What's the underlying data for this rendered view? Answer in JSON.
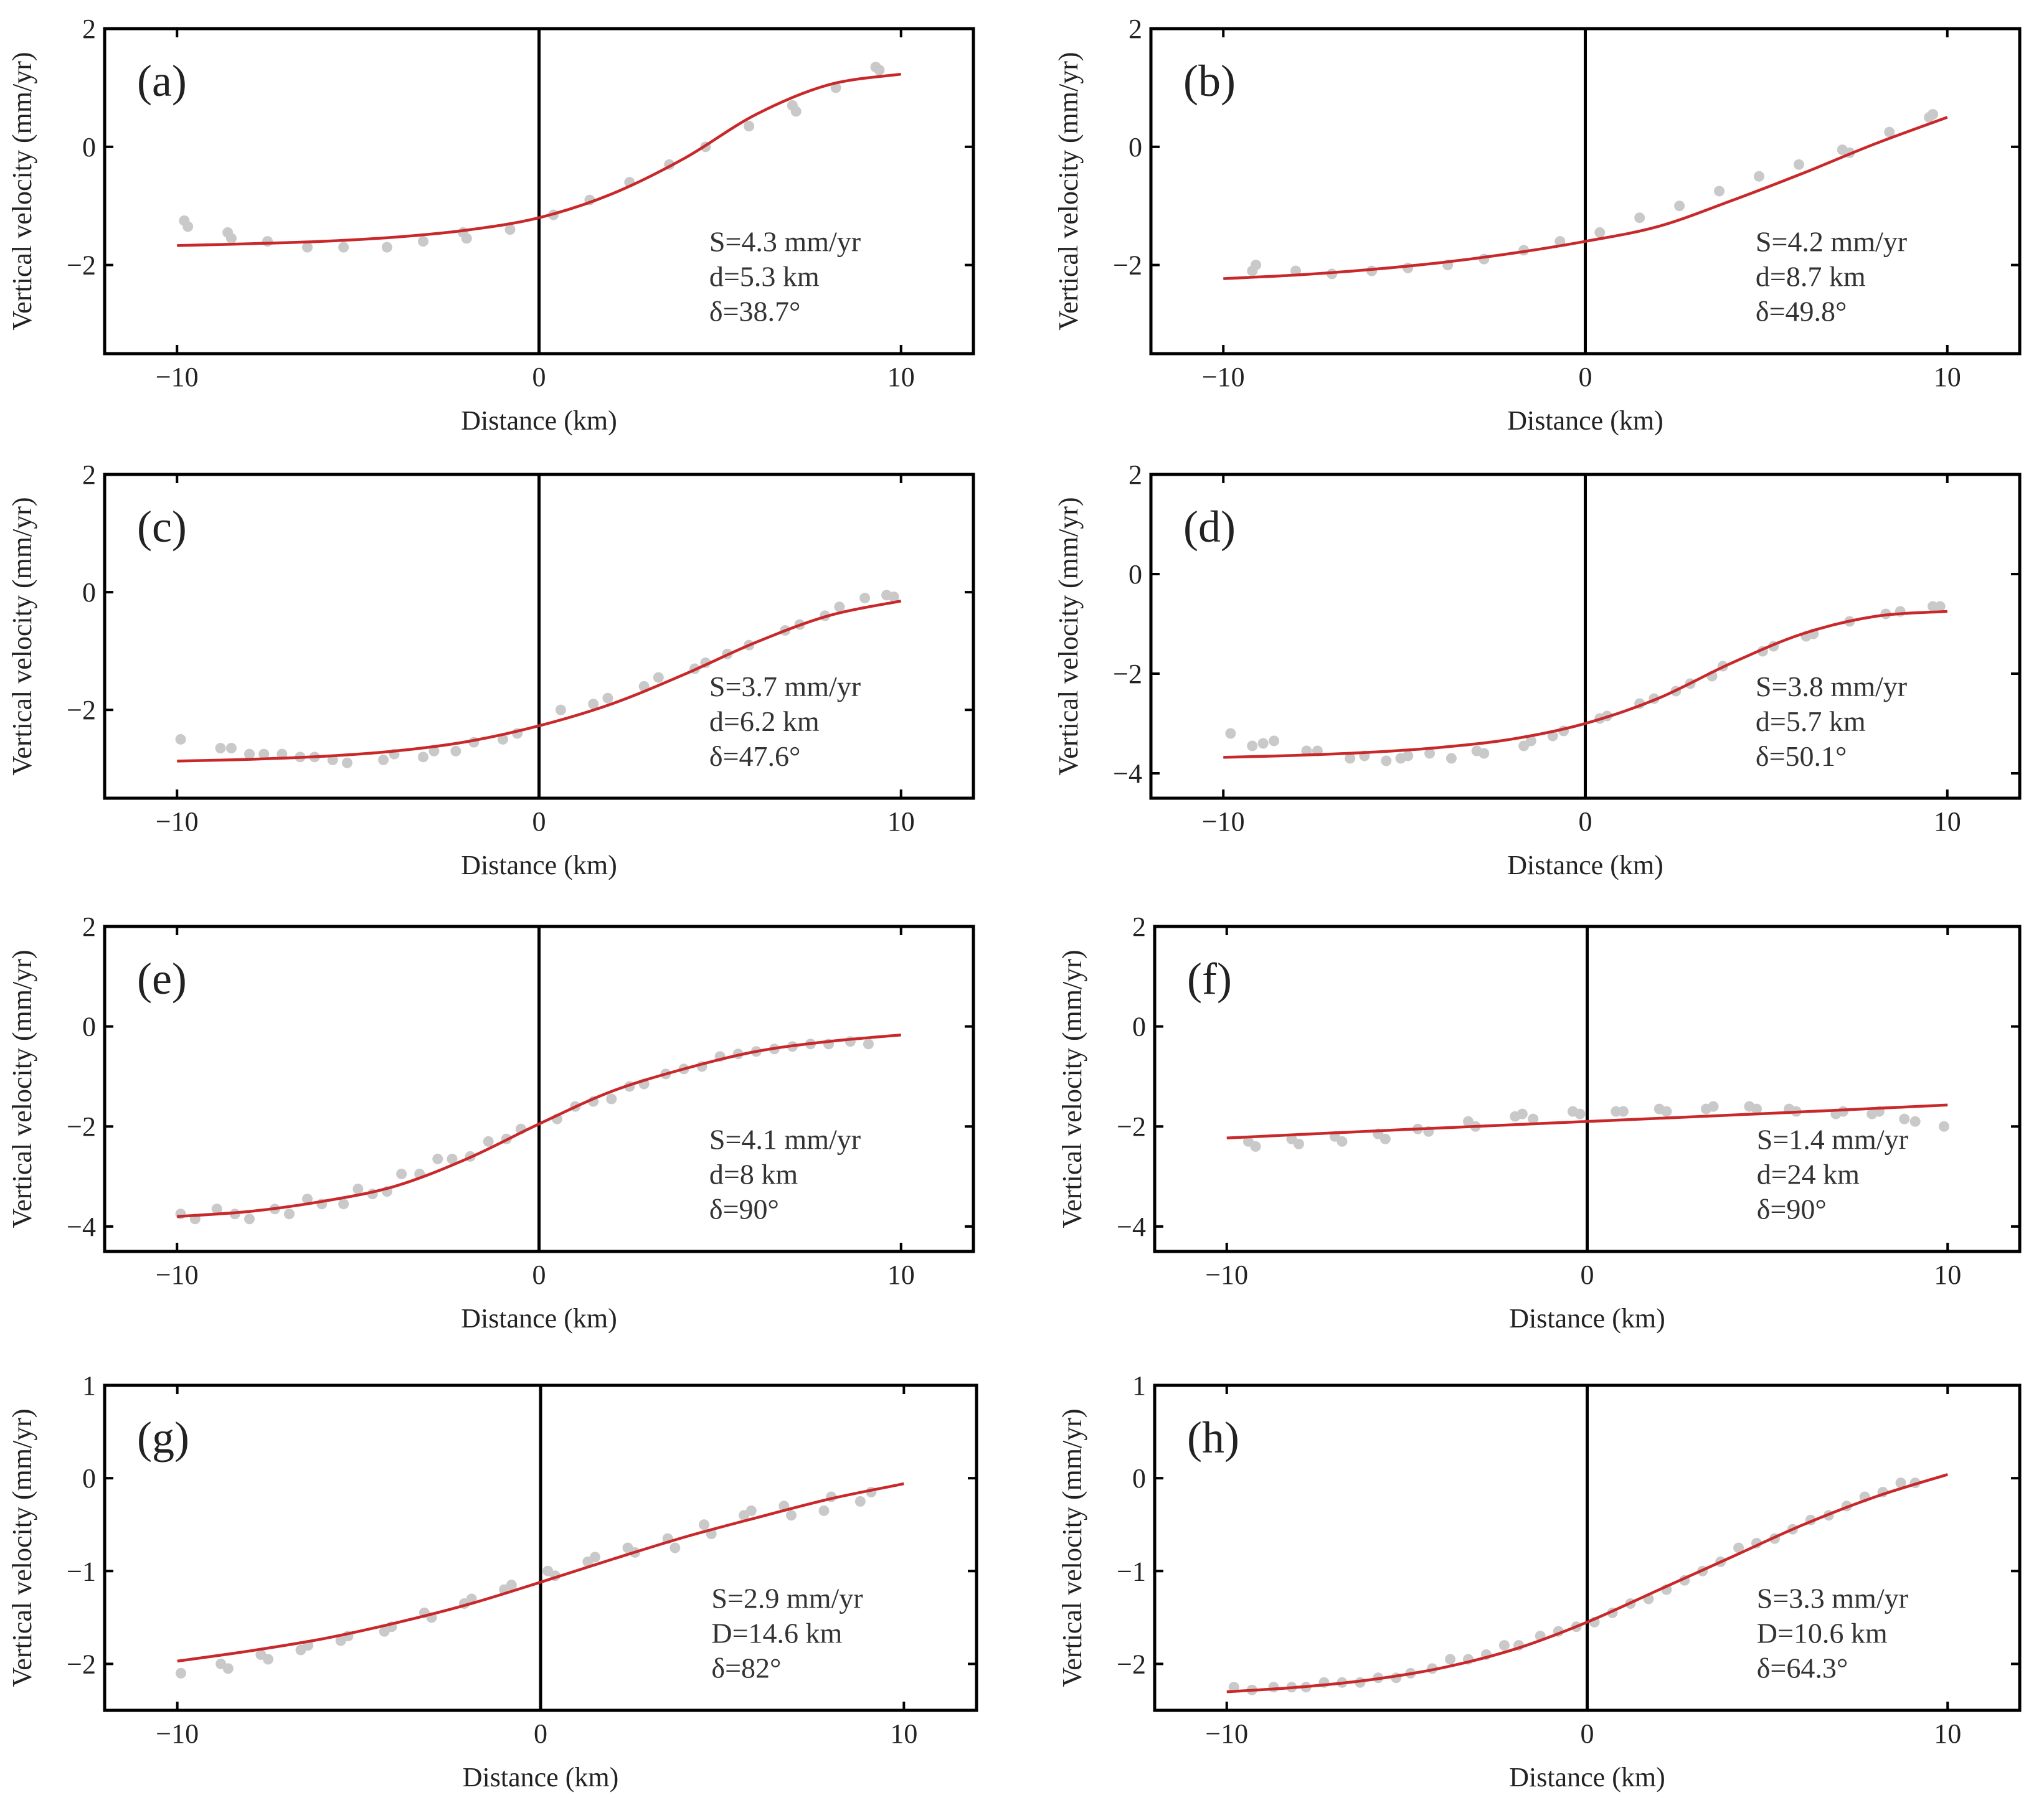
{
  "chart_data": [
    {
      "panel": "(a)",
      "type": "scatter+line",
      "xlabel": "Distance (km)",
      "ylabel": "Vertical velocity (mm/yr)",
      "xlim": [
        -12,
        12
      ],
      "ylim": [
        -3.5,
        2
      ],
      "xticks": [
        -10,
        0,
        10
      ],
      "yticks": [
        -2,
        0,
        2
      ],
      "annotation": [
        "S=4.3 mm/yr",
        "d=5.3 km",
        "δ=38.7°"
      ],
      "observed": {
        "x": [
          -9.8,
          -9.7,
          -8.6,
          -8.5,
          -7.5,
          -6.4,
          -5.4,
          -4.2,
          -3.2,
          -2.1,
          -2.0,
          -0.8,
          0.4,
          1.4,
          2.5,
          3.6,
          4.6,
          5.8,
          7.0,
          7.1,
          8.2,
          9.3,
          9.4
        ],
        "y": [
          -1.25,
          -1.35,
          -1.45,
          -1.55,
          -1.6,
          -1.7,
          -1.7,
          -1.7,
          -1.6,
          -1.45,
          -1.55,
          -1.4,
          -1.15,
          -0.9,
          -0.6,
          -0.3,
          0.0,
          0.35,
          0.7,
          0.6,
          1.0,
          1.35,
          1.3
        ]
      },
      "model": {
        "x": [
          -10,
          -8,
          -6,
          -4,
          -2,
          0,
          2,
          4,
          6,
          8,
          10
        ],
        "y": [
          -1.67,
          -1.64,
          -1.6,
          -1.53,
          -1.41,
          -1.2,
          -0.8,
          -0.2,
          0.55,
          1.05,
          1.23
        ]
      }
    },
    {
      "panel": "(b)",
      "type": "scatter+line",
      "xlabel": "Distance (km)",
      "ylabel": "Vertical velocity (mm/yr)",
      "xlim": [
        -12,
        12
      ],
      "ylim": [
        -3.5,
        2
      ],
      "xticks": [
        -10,
        0,
        10
      ],
      "yticks": [
        -2,
        0,
        2
      ],
      "annotation": [
        "S=4.2 mm/yr",
        "d=8.7 km",
        "δ=49.8°"
      ],
      "observed": {
        "x": [
          -9.2,
          -9.1,
          -8.0,
          -7.0,
          -5.9,
          -4.9,
          -3.8,
          -2.8,
          -1.7,
          -0.7,
          0.4,
          1.5,
          2.6,
          3.7,
          4.8,
          5.9,
          7.1,
          7.3,
          8.4,
          9.5,
          9.6
        ],
        "y": [
          -2.1,
          -2.0,
          -2.1,
          -2.15,
          -2.1,
          -2.05,
          -2.0,
          -1.9,
          -1.75,
          -1.6,
          -1.45,
          -1.2,
          -1.0,
          -0.75,
          -0.5,
          -0.3,
          -0.05,
          -0.1,
          0.25,
          0.5,
          0.55
        ]
      },
      "model": {
        "x": [
          -10,
          -8,
          -6,
          -4,
          -2,
          0,
          2,
          4,
          6,
          8,
          10
        ],
        "y": [
          -2.23,
          -2.17,
          -2.08,
          -1.96,
          -1.8,
          -1.6,
          -1.35,
          -0.92,
          -0.45,
          0.05,
          0.5
        ]
      }
    },
    {
      "panel": "(c)",
      "type": "scatter+line",
      "xlabel": "Distance (km)",
      "ylabel": "Vertical velocity (mm/yr)",
      "xlim": [
        -12,
        12
      ],
      "ylim": [
        -3.5,
        2
      ],
      "xticks": [
        -10,
        0,
        10
      ],
      "yticks": [
        -2,
        0,
        2
      ],
      "annotation": [
        "S=3.7 mm/yr",
        "d=6.2 km",
        "δ=47.6°"
      ],
      "observed": {
        "x": [
          -9.9,
          -8.8,
          -8.5,
          -8.0,
          -7.6,
          -7.1,
          -6.6,
          -6.2,
          -5.7,
          -5.3,
          -4.3,
          -4.0,
          -3.2,
          -2.9,
          -2.3,
          -1.8,
          -1.0,
          -0.6,
          0.6,
          1.5,
          1.9,
          2.9,
          3.3,
          4.3,
          4.6,
          5.2,
          5.8,
          6.8,
          7.2,
          7.9,
          8.3,
          9.0,
          9.6,
          9.8
        ],
        "y": [
          -2.5,
          -2.65,
          -2.65,
          -2.75,
          -2.75,
          -2.75,
          -2.8,
          -2.8,
          -2.85,
          -2.9,
          -2.85,
          -2.75,
          -2.8,
          -2.7,
          -2.7,
          -2.55,
          -2.5,
          -2.4,
          -2.0,
          -1.9,
          -1.8,
          -1.6,
          -1.45,
          -1.3,
          -1.2,
          -1.05,
          -0.9,
          -0.65,
          -0.55,
          -0.4,
          -0.25,
          -0.1,
          -0.05,
          -0.08
        ]
      },
      "model": {
        "x": [
          -10,
          -8,
          -6,
          -4,
          -2,
          0,
          2,
          4,
          6,
          8,
          10
        ],
        "y": [
          -2.87,
          -2.84,
          -2.79,
          -2.7,
          -2.54,
          -2.27,
          -1.9,
          -1.4,
          -0.85,
          -0.4,
          -0.15
        ]
      }
    },
    {
      "panel": "(d)",
      "type": "scatter+line",
      "xlabel": "Distance (km)",
      "ylabel": "Vertical velocity (mm/yr)",
      "xlim": [
        -12,
        12
      ],
      "ylim": [
        -4.5,
        2
      ],
      "xticks": [
        -10,
        0,
        10
      ],
      "yticks": [
        -4,
        -2,
        0,
        2
      ],
      "annotation": [
        "S=3.8 mm/yr",
        "d=5.7 km",
        "δ=50.1°"
      ],
      "observed": {
        "x": [
          -9.8,
          -9.2,
          -8.9,
          -8.6,
          -7.7,
          -7.4,
          -6.5,
          -6.1,
          -5.5,
          -5.1,
          -4.9,
          -4.3,
          -3.7,
          -3.0,
          -2.8,
          -1.7,
          -1.5,
          -0.9,
          -0.6,
          0.4,
          0.6,
          1.5,
          1.9,
          2.5,
          2.9,
          3.5,
          3.8,
          4.9,
          5.2,
          6.1,
          6.3,
          7.3,
          8.3,
          8.7,
          9.6,
          9.8
        ],
        "y": [
          -3.2,
          -3.45,
          -3.4,
          -3.35,
          -3.55,
          -3.55,
          -3.7,
          -3.65,
          -3.75,
          -3.7,
          -3.65,
          -3.6,
          -3.7,
          -3.55,
          -3.6,
          -3.45,
          -3.35,
          -3.25,
          -3.15,
          -2.9,
          -2.85,
          -2.6,
          -2.5,
          -2.35,
          -2.2,
          -2.05,
          -1.85,
          -1.55,
          -1.45,
          -1.25,
          -1.2,
          -0.95,
          -0.8,
          -0.75,
          -0.65,
          -0.65
        ]
      },
      "model": {
        "x": [
          -10,
          -8,
          -6,
          -4,
          -2,
          0,
          2,
          4,
          6,
          8,
          10
        ],
        "y": [
          -3.68,
          -3.64,
          -3.58,
          -3.48,
          -3.31,
          -3.0,
          -2.5,
          -1.8,
          -1.2,
          -0.85,
          -0.75
        ]
      }
    },
    {
      "panel": "(e)",
      "type": "scatter+line",
      "xlabel": "Distance (km)",
      "ylabel": "Vertical velocity (mm/yr)",
      "xlim": [
        -12,
        12
      ],
      "ylim": [
        -4.5,
        2
      ],
      "xticks": [
        -10,
        0,
        10
      ],
      "yticks": [
        -4,
        -2,
        0,
        2
      ],
      "annotation": [
        "S=4.1 mm/yr",
        "d=8 km",
        "δ=90°"
      ],
      "observed": {
        "x": [
          -9.9,
          -9.5,
          -8.9,
          -8.4,
          -8.0,
          -7.3,
          -6.9,
          -6.4,
          -6.0,
          -5.4,
          -5.0,
          -4.6,
          -4.2,
          -3.8,
          -3.3,
          -2.8,
          -2.4,
          -1.9,
          -1.4,
          -0.9,
          -0.5,
          0.5,
          1.0,
          1.5,
          2.0,
          2.5,
          2.9,
          3.5,
          4.0,
          4.5,
          5.0,
          5.5,
          6.0,
          6.5,
          7.0,
          7.5,
          8.0,
          8.6,
          9.1
        ],
        "y": [
          -3.75,
          -3.85,
          -3.65,
          -3.75,
          -3.85,
          -3.65,
          -3.75,
          -3.45,
          -3.55,
          -3.55,
          -3.25,
          -3.35,
          -3.3,
          -2.95,
          -2.95,
          -2.65,
          -2.65,
          -2.6,
          -2.3,
          -2.25,
          -2.05,
          -1.85,
          -1.6,
          -1.5,
          -1.45,
          -1.2,
          -1.15,
          -0.95,
          -0.85,
          -0.8,
          -0.6,
          -0.55,
          -0.5,
          -0.45,
          -0.4,
          -0.35,
          -0.35,
          -0.3,
          -0.35
        ]
      },
      "model": {
        "x": [
          -10,
          -8,
          -6,
          -4,
          -2,
          0,
          2,
          4,
          6,
          8,
          10
        ],
        "y": [
          -3.8,
          -3.7,
          -3.5,
          -3.2,
          -2.65,
          -1.95,
          -1.3,
          -0.85,
          -0.5,
          -0.3,
          -0.17
        ]
      }
    },
    {
      "panel": "(f)",
      "type": "scatter+line",
      "xlabel": "Distance (km)",
      "ylabel": "Vertical velocity (mm/yr)",
      "xlim": [
        -12,
        12
      ],
      "ylim": [
        -4.5,
        2
      ],
      "xticks": [
        -10,
        0,
        10
      ],
      "yticks": [
        -4,
        -2,
        0,
        2
      ],
      "annotation": [
        "S=1.4 mm/yr",
        "d=24 km",
        "δ=90°"
      ],
      "observed": {
        "x": [
          -9.4,
          -9.2,
          -8.2,
          -8.0,
          -7.0,
          -6.8,
          -5.8,
          -5.6,
          -4.7,
          -4.4,
          -3.3,
          -3.1,
          -2.0,
          -1.8,
          -1.5,
          -0.4,
          -0.2,
          0.8,
          1.0,
          2.0,
          2.2,
          3.3,
          3.5,
          4.5,
          4.7,
          5.6,
          5.8,
          6.9,
          7.1,
          7.9,
          8.1,
          8.8,
          9.1,
          9.9
        ],
        "y": [
          -2.3,
          -2.4,
          -2.25,
          -2.35,
          -2.2,
          -2.3,
          -2.15,
          -2.25,
          -2.05,
          -2.1,
          -1.9,
          -2.0,
          -1.8,
          -1.75,
          -1.85,
          -1.7,
          -1.75,
          -1.7,
          -1.7,
          -1.65,
          -1.7,
          -1.65,
          -1.6,
          -1.6,
          -1.65,
          -1.65,
          -1.7,
          -1.75,
          -1.7,
          -1.75,
          -1.7,
          -1.85,
          -1.9,
          -2.0
        ]
      },
      "model": {
        "x": [
          -10,
          -5,
          0,
          5,
          10
        ],
        "y": [
          -2.23,
          -2.06,
          -1.9,
          -1.74,
          -1.57
        ]
      }
    },
    {
      "panel": "(g)",
      "type": "scatter+line",
      "xlabel": "Distance (km)",
      "ylabel": "Vertical velocity (mm/yr)",
      "xlim": [
        -12,
        12
      ],
      "ylim": [
        -2.5,
        1
      ],
      "xticks": [
        -10,
        0,
        10
      ],
      "yticks": [
        -2,
        -1,
        0,
        1
      ],
      "annotation": [
        "S=2.9 mm/yr",
        "D=14.6 km",
        "δ=82°"
      ],
      "observed": {
        "x": [
          -9.9,
          -8.8,
          -8.6,
          -7.7,
          -7.5,
          -6.6,
          -6.4,
          -5.5,
          -5.3,
          -4.3,
          -4.1,
          -3.2,
          -3.0,
          -2.1,
          -1.9,
          -1.0,
          -0.8,
          0.2,
          0.4,
          1.3,
          1.5,
          2.4,
          2.6,
          3.5,
          3.7,
          4.5,
          4.7,
          5.6,
          5.8,
          6.7,
          6.9,
          7.8,
          8.0,
          8.8,
          9.1
        ],
        "y": [
          -2.1,
          -2.0,
          -2.05,
          -1.9,
          -1.95,
          -1.85,
          -1.8,
          -1.75,
          -1.7,
          -1.65,
          -1.6,
          -1.45,
          -1.5,
          -1.35,
          -1.3,
          -1.2,
          -1.15,
          -1.0,
          -1.05,
          -0.9,
          -0.85,
          -0.75,
          -0.8,
          -0.65,
          -0.75,
          -0.5,
          -0.6,
          -0.4,
          -0.35,
          -0.3,
          -0.4,
          -0.35,
          -0.2,
          -0.25,
          -0.15
        ]
      },
      "model": {
        "x": [
          -10,
          -8,
          -6,
          -4,
          -2,
          0,
          2,
          4,
          6,
          8,
          10
        ],
        "y": [
          -1.97,
          -1.86,
          -1.73,
          -1.56,
          -1.36,
          -1.12,
          -0.87,
          -0.63,
          -0.42,
          -0.22,
          -0.06
        ]
      }
    },
    {
      "panel": "(h)",
      "type": "scatter+line",
      "xlabel": "Distance (km)",
      "ylabel": "Vertical velocity (mm/yr)",
      "xlim": [
        -12,
        12
      ],
      "ylim": [
        -2.5,
        1
      ],
      "xticks": [
        -10,
        0,
        10
      ],
      "yticks": [
        -2,
        -1,
        0,
        1
      ],
      "annotation": [
        "S=3.3 mm/yr",
        "D=10.6 km",
        "δ=64.3°"
      ],
      "observed": {
        "x": [
          -9.8,
          -9.3,
          -8.7,
          -8.2,
          -7.8,
          -7.3,
          -6.8,
          -6.3,
          -5.8,
          -5.3,
          -4.9,
          -4.3,
          -3.8,
          -3.3,
          -2.8,
          -2.3,
          -1.9,
          -1.3,
          -0.8,
          -0.3,
          0.2,
          0.7,
          1.2,
          1.7,
          2.2,
          2.7,
          3.2,
          3.7,
          4.2,
          4.7,
          5.2,
          5.7,
          6.2,
          6.7,
          7.2,
          7.7,
          8.2,
          8.7,
          9.1
        ],
        "y": [
          -2.25,
          -2.28,
          -2.25,
          -2.25,
          -2.25,
          -2.2,
          -2.2,
          -2.2,
          -2.15,
          -2.15,
          -2.1,
          -2.05,
          -1.95,
          -1.95,
          -1.9,
          -1.8,
          -1.8,
          -1.7,
          -1.65,
          -1.6,
          -1.55,
          -1.45,
          -1.35,
          -1.3,
          -1.2,
          -1.1,
          -1.0,
          -0.9,
          -0.75,
          -0.7,
          -0.65,
          -0.55,
          -0.45,
          -0.4,
          -0.3,
          -0.2,
          -0.15,
          -0.05,
          -0.05
        ]
      },
      "model": {
        "x": [
          -10,
          -8,
          -6,
          -4,
          -2,
          0,
          2,
          4,
          6,
          8,
          10
        ],
        "y": [
          -2.3,
          -2.25,
          -2.17,
          -2.04,
          -1.84,
          -1.55,
          -1.2,
          -0.85,
          -0.5,
          -0.2,
          0.04
        ]
      }
    }
  ]
}
